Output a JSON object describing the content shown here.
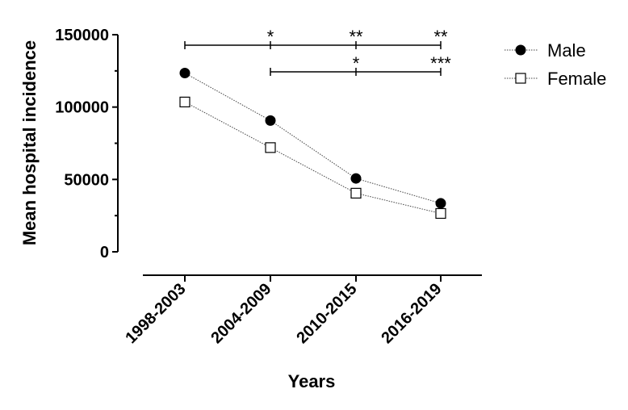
{
  "chart_data": {
    "type": "line",
    "categories": [
      "1998-2003",
      "2004-2009",
      "2010-2015",
      "2016-2019"
    ],
    "series": [
      {
        "name": "Male",
        "values": [
          123500,
          90700,
          50700,
          33500
        ],
        "marker": "filled-circle",
        "color": "#000000"
      },
      {
        "name": "Female",
        "values": [
          103500,
          72000,
          40500,
          26500
        ],
        "marker": "open-square",
        "color": "#000000"
      }
    ],
    "xlabel": "Years",
    "ylabel": "Mean hospital incidence",
    "ylim": [
      0,
      150000
    ],
    "yticks": [
      0,
      50000,
      100000,
      150000
    ],
    "ytick_labels": [
      "0",
      "50000",
      "100000",
      "150000"
    ],
    "grid": false,
    "legend_position": "top-right",
    "significance": [
      {
        "from": "1998-2003",
        "marks": [
          {
            "at": "2004-2009",
            "label": "*"
          },
          {
            "at": "2010-2015",
            "label": "**"
          },
          {
            "at": "2016-2019",
            "label": "**"
          }
        ]
      },
      {
        "from": "2004-2009",
        "marks": [
          {
            "at": "2010-2015",
            "label": "*"
          },
          {
            "at": "2016-2019",
            "label": "***"
          }
        ]
      }
    ]
  }
}
